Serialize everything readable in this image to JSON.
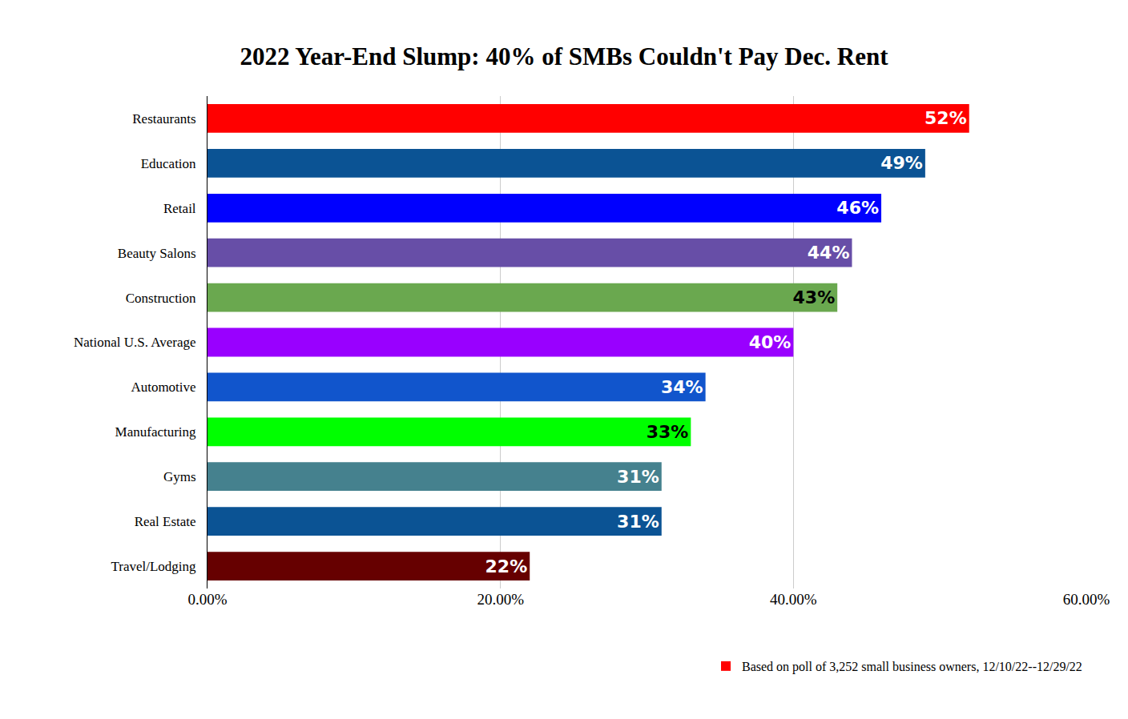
{
  "chart_data": {
    "type": "bar",
    "title": "2022 Year-End Slump: 40% of SMBs Couldn't Pay Dec. Rent",
    "orientation": "horizontal",
    "categories": [
      "Restaurants",
      "Education",
      "Retail",
      "Beauty Salons",
      "Construction",
      "National U.S. Average",
      "Automotive",
      "Manufacturing",
      "Gyms",
      "Real Estate",
      "Travel/Lodging"
    ],
    "series": [
      {
        "name": "Based on poll of 3,252 small business owners, 12/10/22--12/29/22",
        "color": "#ff0000",
        "values": [
          52,
          49,
          46,
          44,
          43,
          40,
          34,
          33,
          31,
          31,
          22
        ],
        "value_labels": [
          "52%",
          "49%",
          "46%",
          "44%",
          "43%",
          "40%",
          "34%",
          "33%",
          "31%",
          "31%",
          "22%"
        ],
        "colors": [
          "#ff0000",
          "#0b5394",
          "#0000ff",
          "#674ea7",
          "#6aa84f",
          "#9900ff",
          "#1155cc",
          "#00ff00",
          "#45818e",
          "#0b5394",
          "#660000"
        ]
      }
    ],
    "xlim": [
      0,
      60
    ],
    "xticks": [
      {
        "value": 0,
        "label": "0.00%"
      },
      {
        "value": 20,
        "label": "20.00%"
      },
      {
        "value": 40,
        "label": "40.00%"
      },
      {
        "value": 60,
        "label": "60.00%"
      }
    ],
    "grid": true,
    "data_labels": true,
    "legend": "bottom right"
  }
}
